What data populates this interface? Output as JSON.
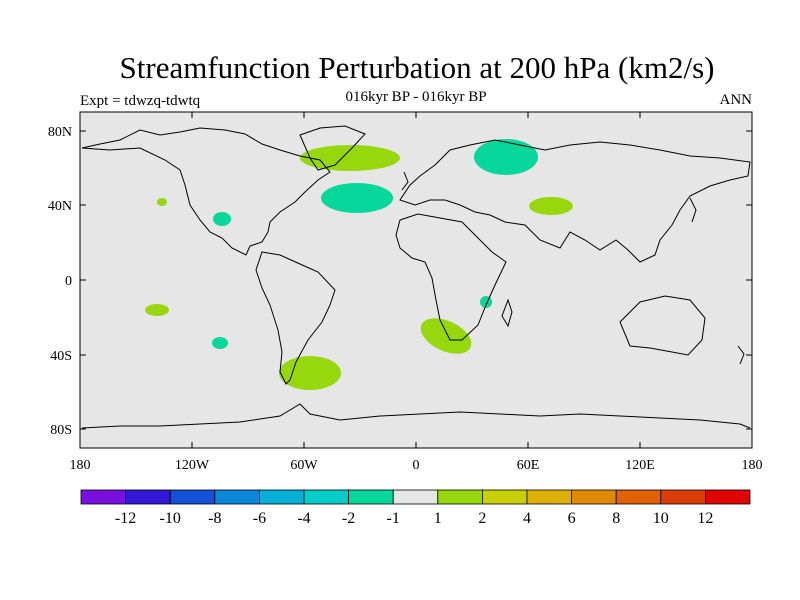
{
  "header": {
    "title": "Streamfunction Perturbation at 200 hPa (km2/s)",
    "subtitle": "016kyr BP - 016kyr BP",
    "left_label": "Expt = tdwzq-tdwtq",
    "right_label": "ANN"
  },
  "axes": {
    "lat_labels": [
      "80N",
      "40N",
      "0",
      "40S",
      "80S"
    ],
    "lon_labels": [
      "180",
      "120W",
      "60W",
      "0",
      "60E",
      "120E",
      "180"
    ]
  },
  "colorbar": {
    "labels": [
      "-12",
      "-10",
      "-8",
      "-6",
      "-4",
      "-2",
      "-1",
      "1",
      "2",
      "4",
      "6",
      "8",
      "10",
      "12"
    ],
    "colors": [
      "#7a10e0",
      "#3418d8",
      "#1450d8",
      "#0a86dc",
      "#06b0d8",
      "#04ccc8",
      "#06d89c",
      "#e6e6e6",
      "#96d80c",
      "#c8d004",
      "#dcb000",
      "#e08a04",
      "#e06204",
      "#dc3c08",
      "#e00404"
    ]
  },
  "colors": {
    "background": "#e6e6e6",
    "positive_small": "#96d80c",
    "negative_small": "#06d89c"
  }
}
